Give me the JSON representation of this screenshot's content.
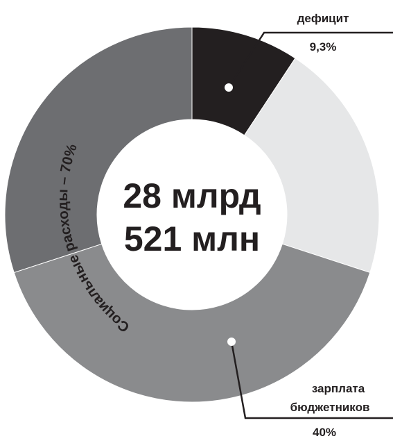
{
  "chart_data": {
    "type": "pie",
    "center": {
      "line1": "28 млрд",
      "line2": "521 млн"
    },
    "slices": [
      {
        "label_lines": [
          "дефицит"
        ],
        "value": 9.3,
        "value_text": "9,3%",
        "color": "#231f20"
      },
      {
        "label_lines": [],
        "value": 20.7,
        "value_text": "",
        "color": "#e6e7e8"
      },
      {
        "label_lines": [
          "зарплата",
          "бюджетников"
        ],
        "value": 40,
        "value_text": "40%",
        "color": "#8a8b8d"
      },
      {
        "label_lines": [],
        "value": 30,
        "value_text": "",
        "color": "#6d6e71"
      }
    ],
    "group_label": "Социальные расходы – 70%",
    "legend": "none"
  }
}
